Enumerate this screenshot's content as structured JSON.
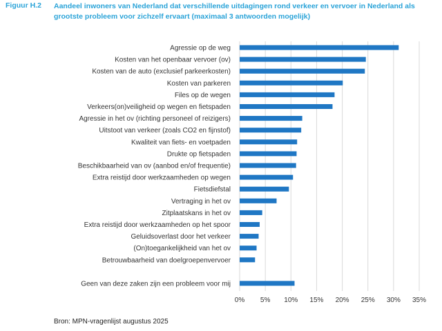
{
  "figure": {
    "label": "Figuur H.2",
    "title": "Aandeel inwoners van Nederland dat verschillende uitdagingen rond verkeer en vervoer in Nederland als grootste probleem voor zichzelf ervaart (maximaal 3 antwoorden mogelijk)",
    "source": "Bron: MPN-vragenlijst augustus 2025"
  },
  "colors": {
    "bar": "#1f77c4",
    "title": "#2aa3d8",
    "grid": "#d9d9d9",
    "text": "#333333"
  },
  "chart_data": {
    "type": "bar",
    "orientation": "horizontal",
    "title": "",
    "xlabel": "",
    "ylabel": "",
    "xlim": [
      0,
      35
    ],
    "xticks": [
      "0%",
      "5%",
      "10%",
      "15%",
      "20%",
      "25%",
      "30%",
      "35%"
    ],
    "xtick_values": [
      0,
      5,
      10,
      15,
      20,
      25,
      30,
      35
    ],
    "grid": true,
    "categories": [
      "Agressie op de weg",
      "Kosten van het openbaar vervoer (ov)",
      "Kosten van de auto (exclusief parkeerkosten)",
      "Kosten van parkeren",
      "Files op de wegen",
      "Verkeers(on)veiligheid op wegen en fietspaden",
      "Agressie in het ov (richting personeel of reizigers)",
      "Uitstoot van verkeer (zoals CO2 en fijnstof)",
      "Kwaliteit van fiets- en voetpaden",
      "Drukte op fietspaden",
      "Beschikbaarheid van ov (aanbod en/of frequentie)",
      "Extra reistijd door werkzaamheden op wegen",
      "Fietsdiefstal",
      "Vertraging in het ov",
      "Zitplaatskans in het ov",
      "Extra reistijd door werkzaamheden op het spoor",
      "Geluidsoverlast door het verkeer",
      "(On)toegankelijkheid van het ov",
      "Betrouwbaarheid van doelgroepenvervoer",
      "Geen van deze zaken zijn een probleem voor mij"
    ],
    "values": [
      31.0,
      24.6,
      24.4,
      20.1,
      18.5,
      18.1,
      12.2,
      12.0,
      11.2,
      11.1,
      11.0,
      10.4,
      9.6,
      7.2,
      4.4,
      3.9,
      3.7,
      3.3,
      3.0,
      10.7
    ]
  }
}
